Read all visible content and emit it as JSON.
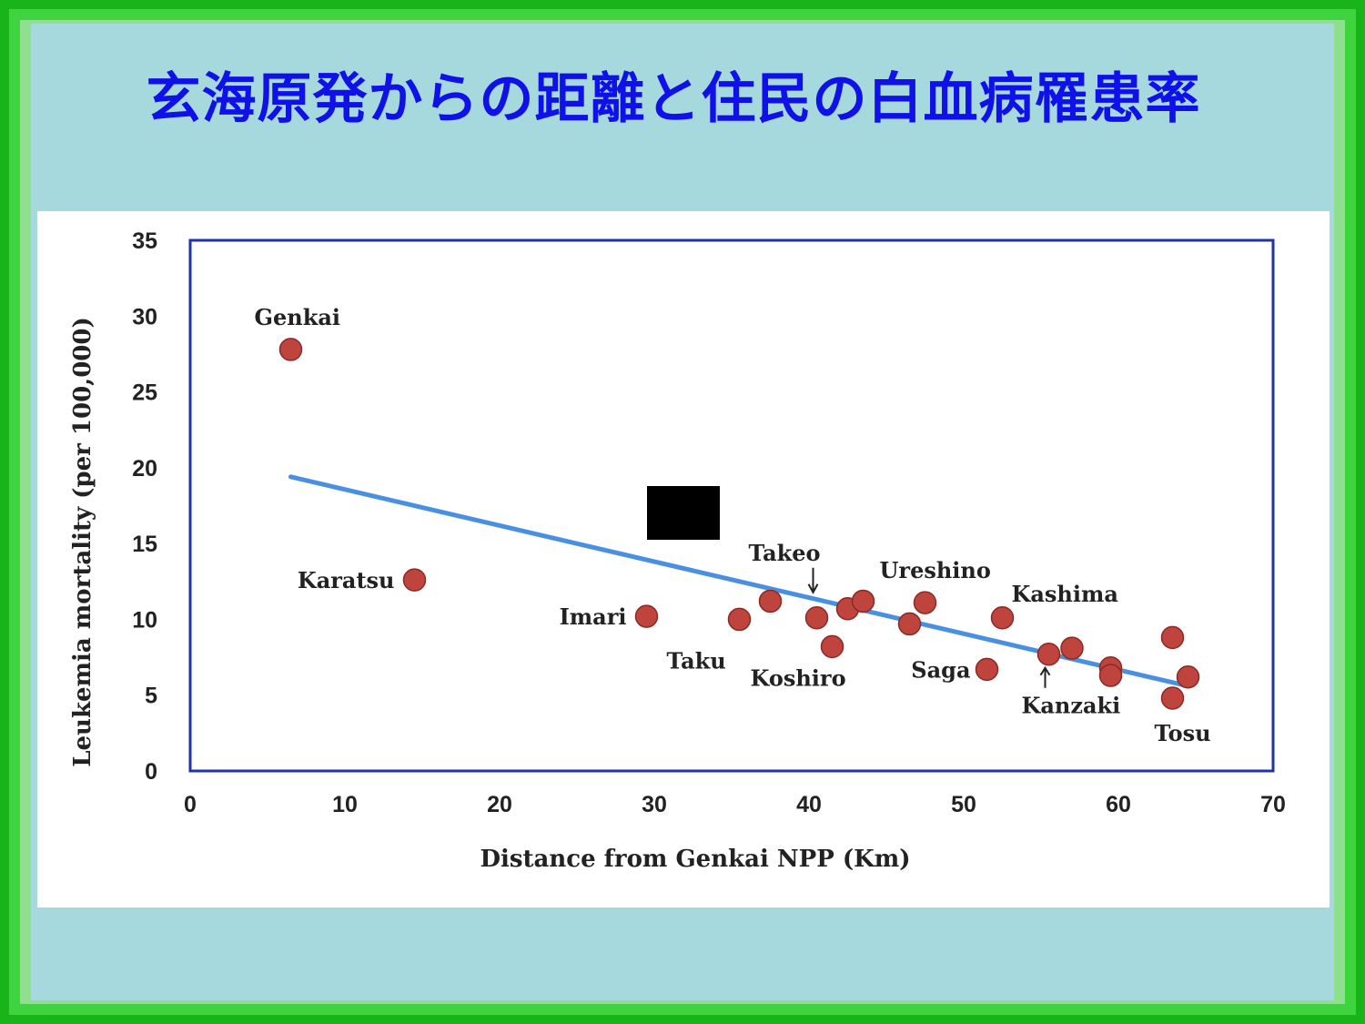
{
  "page": {
    "title": "玄海原発からの距離と住民の白血病罹患率",
    "colors": {
      "frame": "#1fbd1f",
      "panel": "#a6d9dd",
      "title": "#1010e8"
    }
  },
  "chart_data": {
    "type": "scatter",
    "title": "",
    "xlabel": "Distance from Genkai NPP (Km)",
    "ylabel": "Leukemia mortality (per 100,000)",
    "xlim": [
      0,
      70
    ],
    "ylim": [
      0,
      35
    ],
    "xticks": [
      "0",
      "10",
      "20",
      "30",
      "40",
      "50",
      "60",
      "70"
    ],
    "yticks": [
      "0",
      "5",
      "10",
      "15",
      "20",
      "25",
      "30",
      "35"
    ],
    "grid": false,
    "legend": "none",
    "colors": {
      "points": "#c0443e",
      "trend": "#4a90e2",
      "axes_box": "#2233aa"
    },
    "points": [
      {
        "x": 6.5,
        "y": 27.8,
        "label": "Genkai"
      },
      {
        "x": 14.5,
        "y": 12.6,
        "label": "Karatsu"
      },
      {
        "x": 29.5,
        "y": 10.2,
        "label": "Imari"
      },
      {
        "x": 35.5,
        "y": 10.0,
        "label": "Taku"
      },
      {
        "x": 37.5,
        "y": 11.2,
        "label": ""
      },
      {
        "x": 40.5,
        "y": 10.1,
        "label": "Takeo"
      },
      {
        "x": 41.5,
        "y": 8.2,
        "label": "Koshiro"
      },
      {
        "x": 42.5,
        "y": 10.7,
        "label": ""
      },
      {
        "x": 43.5,
        "y": 11.2,
        "label": ""
      },
      {
        "x": 46.5,
        "y": 9.7,
        "label": ""
      },
      {
        "x": 47.5,
        "y": 11.1,
        "label": "Ureshino"
      },
      {
        "x": 51.5,
        "y": 6.7,
        "label": "Saga"
      },
      {
        "x": 52.5,
        "y": 10.1,
        "label": "Kashima"
      },
      {
        "x": 55.5,
        "y": 7.7,
        "label": "Kanzaki"
      },
      {
        "x": 57.0,
        "y": 8.1,
        "label": ""
      },
      {
        "x": 59.5,
        "y": 6.8,
        "label": ""
      },
      {
        "x": 59.5,
        "y": 6.3,
        "label": ""
      },
      {
        "x": 63.5,
        "y": 8.8,
        "label": ""
      },
      {
        "x": 63.5,
        "y": 4.8,
        "label": "Tosu"
      },
      {
        "x": 64.5,
        "y": 6.2,
        "label": ""
      }
    ],
    "trendline": [
      {
        "x": 6.5,
        "y": 19.4
      },
      {
        "x": 64.5,
        "y": 5.6
      }
    ]
  }
}
